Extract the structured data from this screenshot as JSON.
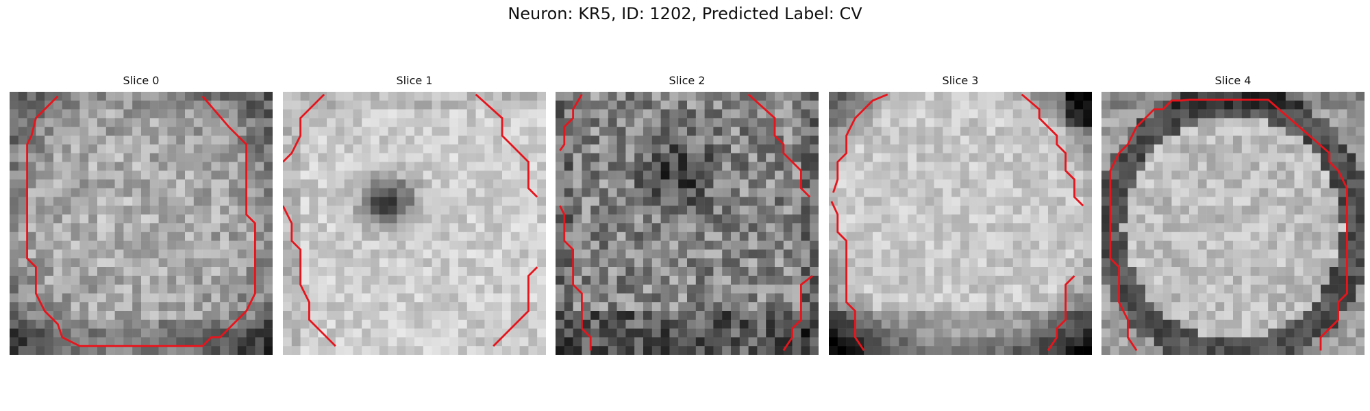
{
  "figure": {
    "title": "Neuron: KR5, ID: 1202, Predicted Label: CV"
  },
  "colors": {
    "contour": "#e8141c"
  },
  "panels": [
    {
      "title": "Slice 0"
    },
    {
      "title": "Slice 1"
    },
    {
      "title": "Slice 2"
    },
    {
      "title": "Slice 3"
    },
    {
      "title": "Slice 4"
    }
  ]
}
